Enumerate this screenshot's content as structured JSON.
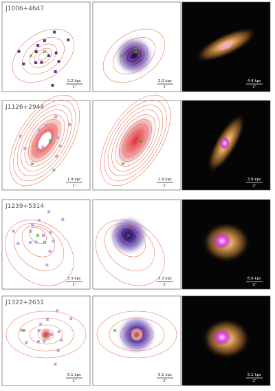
{
  "rows": [
    {
      "label": "J1006+4647",
      "panels": [
        {
          "scale": "2.2 kpc",
          "angle": "1″"
        },
        {
          "scale": "2.2 kpc",
          "angle": "1″"
        },
        {
          "scale": "4.4 kpc",
          "angle": "2″"
        }
      ]
    },
    {
      "label": "J1126+2944",
      "panels": [
        {
          "scale": "1.9 kpc",
          "angle": "1″"
        },
        {
          "scale": "1.9 kpc",
          "angle": "1″"
        },
        {
          "scale": "3.8 kpc",
          "angle": "2″"
        }
      ]
    },
    {
      "label": "J1239+5314",
      "panels": [
        {
          "scale": "3.3 kpc",
          "angle": "1″"
        },
        {
          "scale": "3.3 kpc",
          "angle": "1″"
        },
        {
          "scale": "6.6 kpc",
          "angle": "2″"
        }
      ]
    },
    {
      "label": "J1322+2631",
      "panels": [
        {
          "scale": "5.1 kpc",
          "angle": "2″"
        },
        {
          "scale": "5.1 kpc",
          "angle": "2″"
        },
        {
          "scale": "5.1 kpc",
          "angle": "2″"
        }
      ]
    }
  ]
}
